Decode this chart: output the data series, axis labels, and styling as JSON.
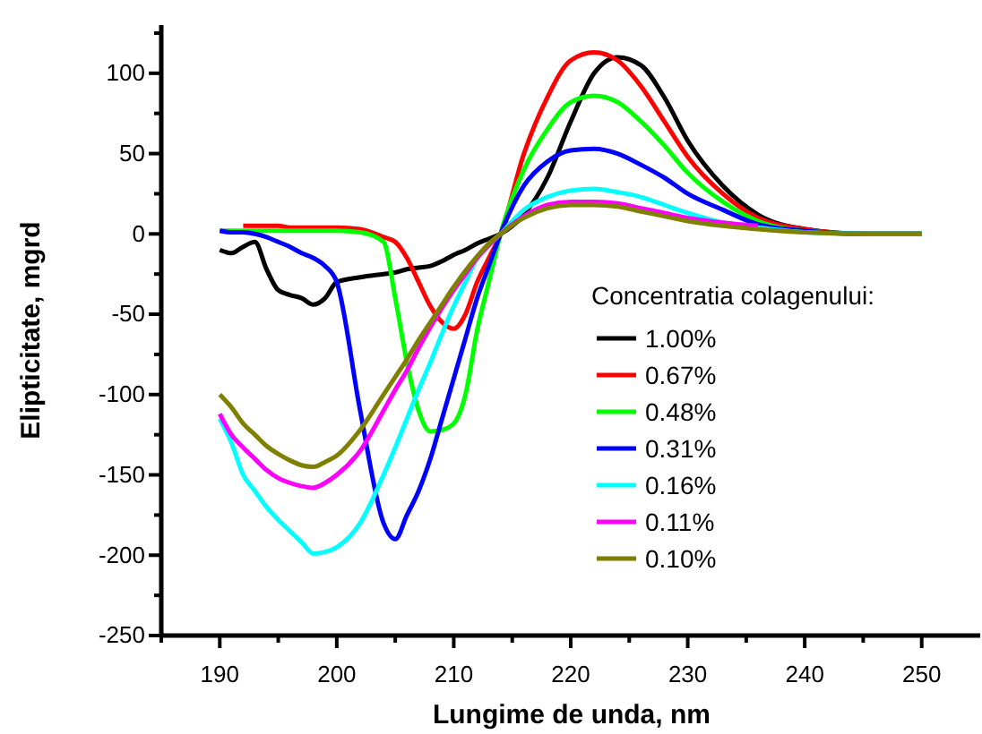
{
  "chart_data": {
    "type": "line",
    "xlabel": "Lungime de unda, nm",
    "ylabel": "Elipticitate, mgrd",
    "legend_title": "Concentratia colagenului:",
    "legend": "right",
    "grid": false,
    "line_style": "solid",
    "marker": "none",
    "xlim": [
      185,
      255
    ],
    "ylim": [
      -250,
      130
    ],
    "xticks": [
      {
        "value": 185,
        "label": null
      },
      190,
      {
        "value": 195,
        "label": null
      },
      200,
      {
        "value": 205,
        "label": null
      },
      210,
      {
        "value": 215,
        "label": null
      },
      220,
      {
        "value": 225,
        "label": null
      },
      230,
      {
        "value": 235,
        "label": null
      },
      240,
      {
        "value": 245,
        "label": null
      },
      250
    ],
    "yticks": [
      -250,
      {
        "value": -225,
        "label": null
      },
      -200,
      {
        "value": -175,
        "label": null
      },
      -150,
      {
        "value": -125,
        "label": null
      },
      -100,
      {
        "value": -75,
        "label": null
      },
      -50,
      {
        "value": -25,
        "label": null
      },
      0,
      {
        "value": 25,
        "label": null
      },
      50,
      {
        "value": 75,
        "label": null
      },
      100,
      {
        "value": 125,
        "label": null
      }
    ],
    "x": [
      190,
      191,
      192,
      193,
      194,
      195,
      196,
      197,
      198,
      199,
      200,
      202,
      204,
      205,
      206,
      207,
      208,
      209,
      210,
      211,
      212,
      213,
      214,
      216,
      218,
      220,
      222,
      224,
      226,
      228,
      230,
      233,
      236,
      240,
      245,
      250
    ],
    "series": [
      {
        "name": "1.00%",
        "color": "#000000",
        "values": [
          -10,
          -12,
          -8,
          -5,
          -22,
          -35,
          -38,
          -40,
          -44,
          -40,
          -30,
          -27,
          -25,
          -24,
          -22,
          -21,
          -20,
          -17,
          -13,
          -10,
          -6,
          -3,
          0,
          12,
          35,
          70,
          100,
          110,
          105,
          85,
          58,
          30,
          12,
          3,
          0,
          0
        ]
      },
      {
        "name": "0.67%",
        "color": "#ff0000",
        "values": [
          null,
          null,
          5,
          5,
          5,
          5,
          4,
          4,
          4,
          4,
          4,
          3,
          -2,
          -5,
          -15,
          -30,
          -45,
          -55,
          -59,
          -50,
          -30,
          -15,
          0,
          50,
          85,
          108,
          113,
          108,
          92,
          70,
          48,
          25,
          10,
          3,
          0,
          0
        ]
      },
      {
        "name": "0.48%",
        "color": "#00ff00",
        "values": [
          2,
          2,
          2,
          2,
          2,
          2,
          2,
          2,
          2,
          2,
          2,
          1,
          -5,
          -40,
          -80,
          -110,
          -123,
          -122,
          -118,
          -100,
          -60,
          -30,
          0,
          40,
          65,
          82,
          86,
          82,
          70,
          55,
          38,
          20,
          8,
          2,
          0,
          0
        ]
      },
      {
        "name": "0.31%",
        "color": "#0000ff",
        "values": [
          2,
          1,
          1,
          0,
          -2,
          -5,
          -8,
          -12,
          -15,
          -20,
          -30,
          -110,
          -180,
          -190,
          -175,
          -160,
          -140,
          -115,
          -90,
          -65,
          -40,
          -20,
          0,
          30,
          45,
          52,
          53,
          50,
          43,
          35,
          25,
          15,
          6,
          2,
          0,
          0
        ]
      },
      {
        "name": "0.16%",
        "color": "#00ffff",
        "values": [
          -115,
          -130,
          -150,
          -160,
          -170,
          -178,
          -185,
          -192,
          -199,
          -198,
          -195,
          -180,
          -150,
          -133,
          -115,
          -97,
          -80,
          -62,
          -45,
          -30,
          -15,
          -7,
          0,
          15,
          23,
          27,
          28,
          26,
          23,
          18,
          13,
          7,
          4,
          1,
          0,
          0
        ]
      },
      {
        "name": "0.11%",
        "color": "#ff00ff",
        "values": [
          -112,
          -125,
          -133,
          -140,
          -147,
          -152,
          -155,
          -157,
          -158,
          -155,
          -150,
          -135,
          -110,
          -97,
          -85,
          -71,
          -58,
          -46,
          -35,
          -25,
          -15,
          -7,
          0,
          11,
          18,
          20,
          20,
          19,
          16,
          13,
          10,
          7,
          5,
          null,
          null,
          null
        ]
      },
      {
        "name": "0.10%",
        "color": "#808000",
        "values": [
          -100,
          -108,
          -118,
          -125,
          -132,
          -137,
          -141,
          -144,
          -145,
          -142,
          -138,
          -122,
          -100,
          -89,
          -78,
          -66,
          -55,
          -44,
          -33,
          -23,
          -14,
          -6,
          0,
          10,
          16,
          18,
          18,
          17,
          14,
          11,
          8,
          5,
          3,
          1,
          0,
          0
        ]
      }
    ]
  }
}
